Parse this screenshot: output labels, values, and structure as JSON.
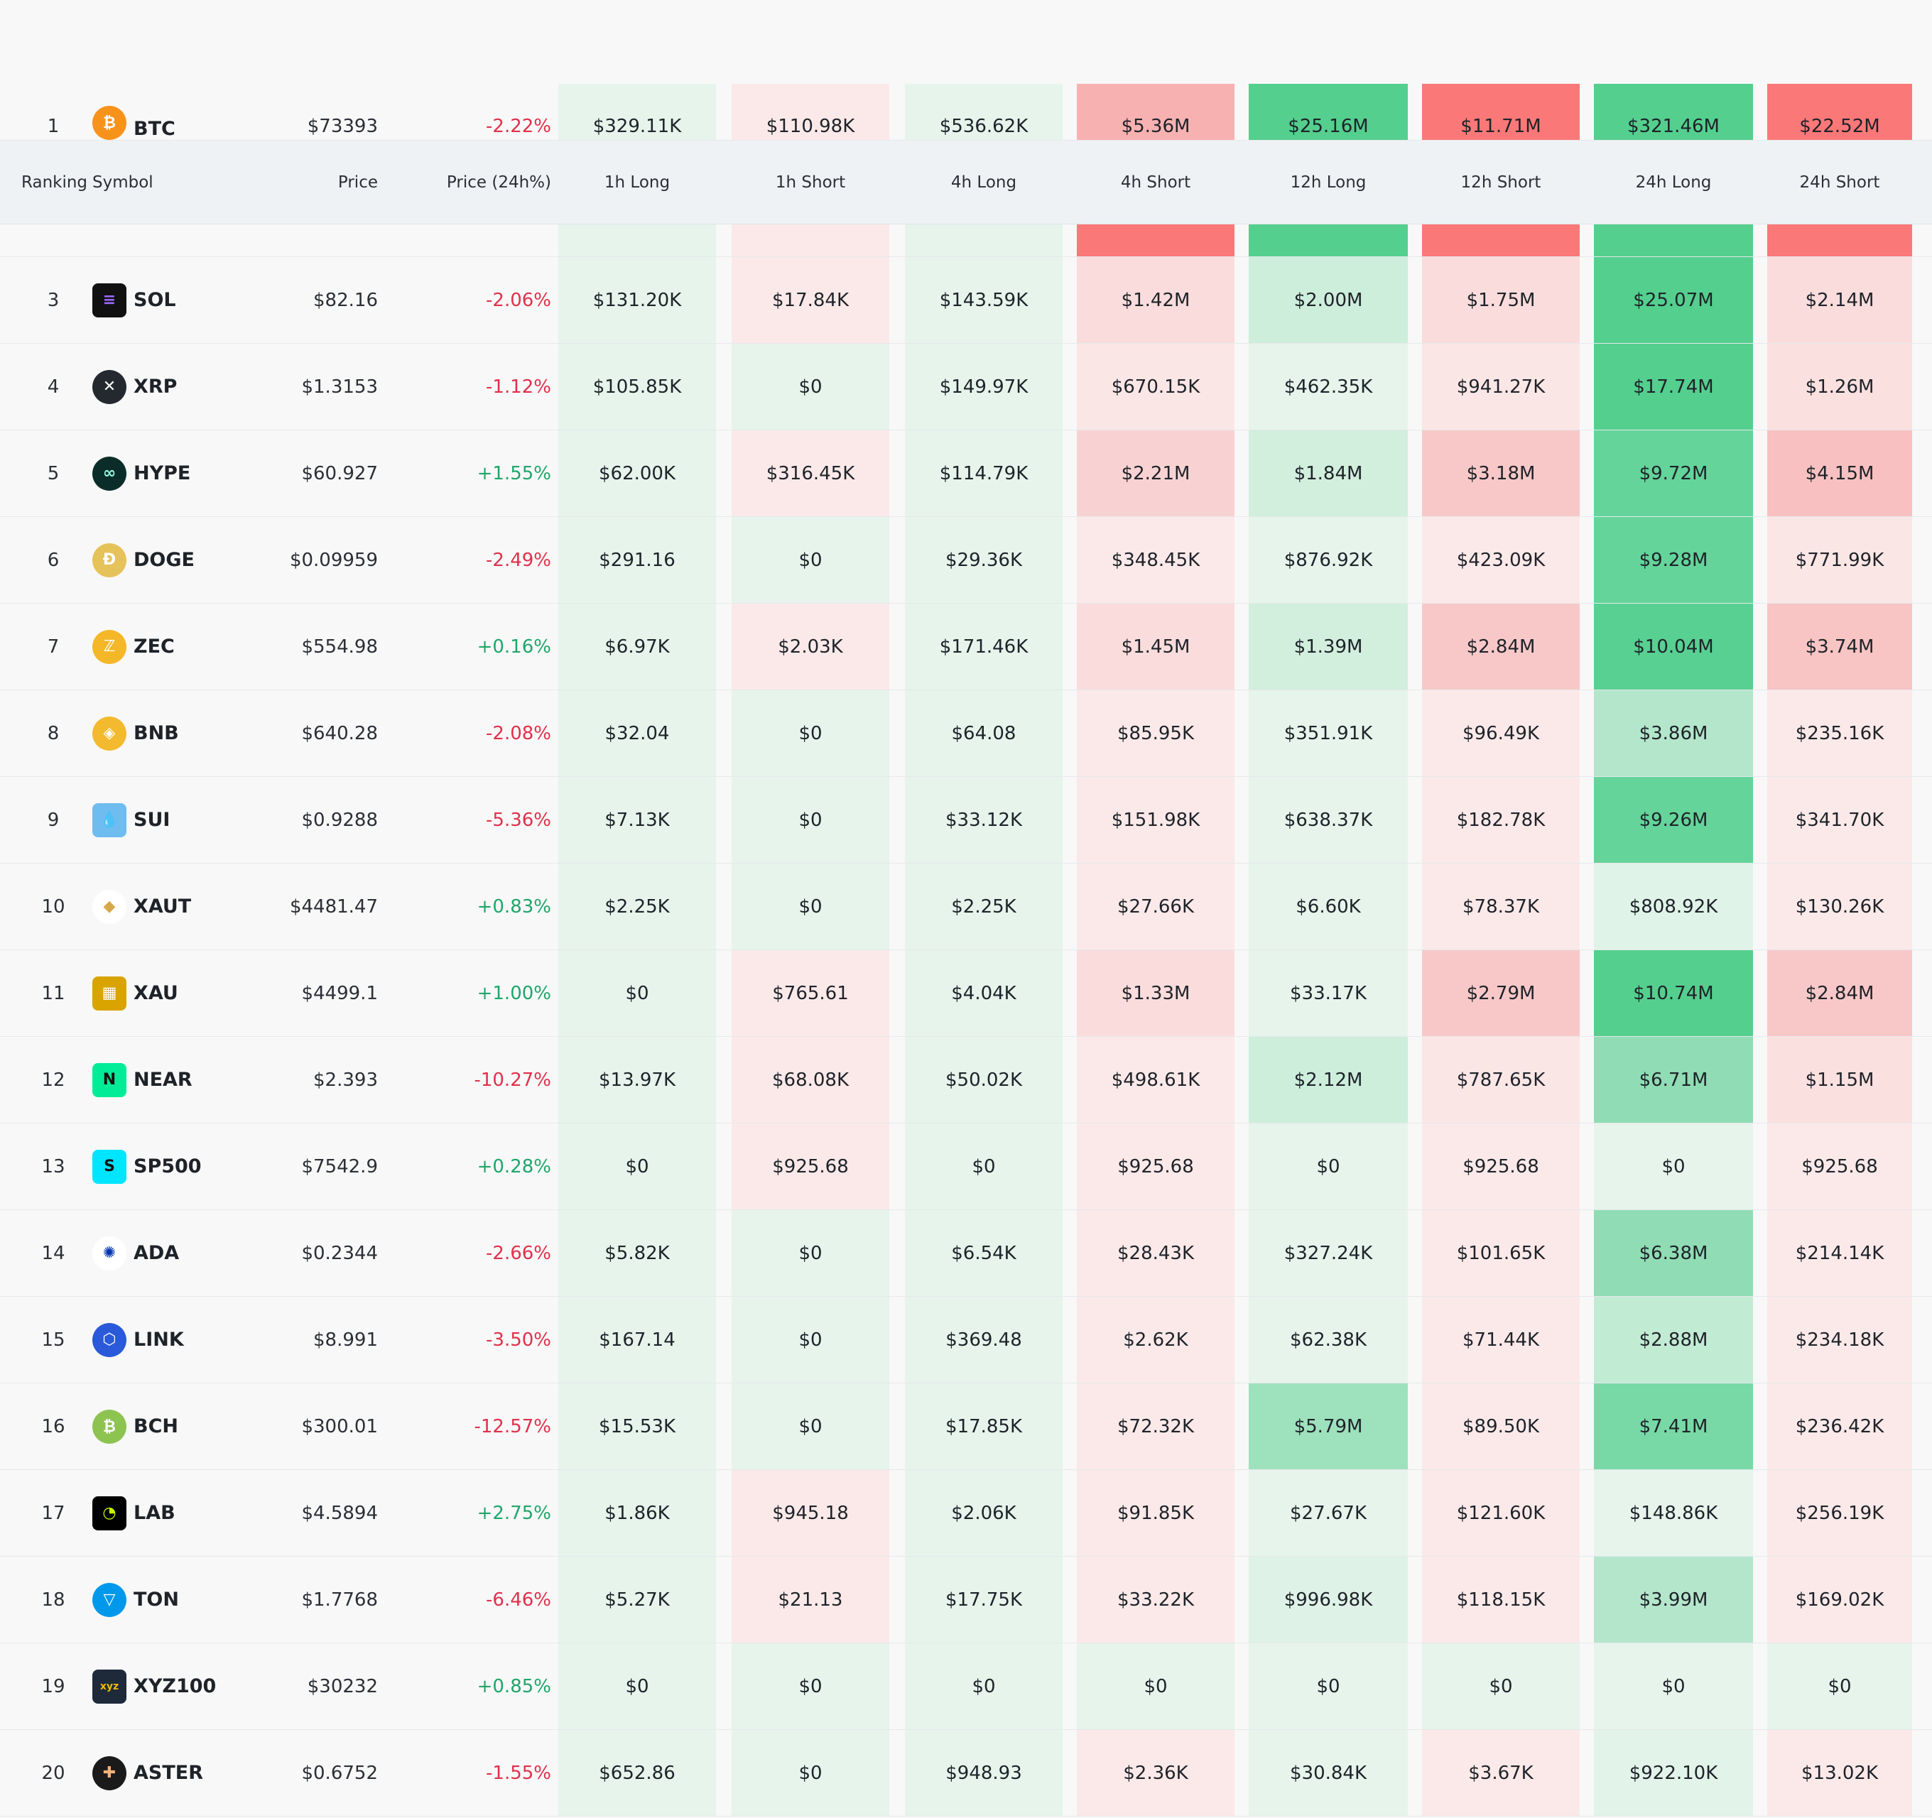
{
  "table": {
    "headers": {
      "ranking": "Ranking",
      "symbol": "Symbol",
      "price": "Price",
      "change": "Price (24h%)",
      "h1_long": "1h Long",
      "h1_short": "1h Short",
      "h4_long": "4h Long",
      "h4_short": "4h Short",
      "h12_long": "12h Long",
      "h12_short": "12h Short",
      "h24_long": "24h Long",
      "h24_short": "24h Short"
    },
    "rows": [
      {
        "rank": "1",
        "symbol": "BTC",
        "icon": "bitcoin-icon",
        "price": "$73393",
        "change": "-2.22%",
        "values": [
          "$329.11K",
          "$110.98K",
          "$536.62K",
          "$5.36M",
          "$25.16M",
          "$11.71M",
          "$321.46M",
          "$22.52M"
        ],
        "colors": [
          "#e6f4ec",
          "#fbe9e9",
          "#e6f4ec",
          "#f8b1b1",
          "#54cf8e",
          "#fb7878",
          "#54cf8e",
          "#fb7878"
        ]
      },
      {
        "rank": "3",
        "symbol": "SOL",
        "icon": "solana-icon",
        "price": "$82.16",
        "change": "-2.06%",
        "values": [
          "$131.20K",
          "$17.84K",
          "$143.59K",
          "$1.42M",
          "$2.00M",
          "$1.75M",
          "$25.07M",
          "$2.14M"
        ],
        "colors": [
          "#e6f4ec",
          "#fbe9e9",
          "#e6f4ec",
          "#fadcdc",
          "#cdeedb",
          "#fadcdc",
          "#54cf8e",
          "#fadcdc"
        ]
      },
      {
        "rank": "4",
        "symbol": "XRP",
        "icon": "xrp-icon",
        "price": "$1.3153",
        "change": "-1.12%",
        "values": [
          "$105.85K",
          "$0",
          "$149.97K",
          "$670.15K",
          "$462.35K",
          "$941.27K",
          "$17.74M",
          "$1.26M"
        ],
        "colors": [
          "#e6f4ec",
          "#e6f4ec",
          "#e6f4ec",
          "#fbe6e6",
          "#e6f4ec",
          "#fbe6e6",
          "#54cf8e",
          "#fbe0e0"
        ]
      },
      {
        "rank": "5",
        "symbol": "HYPE",
        "icon": "hyperliquid-icon",
        "price": "$60.927",
        "change": "+1.55%",
        "values": [
          "$62.00K",
          "$316.45K",
          "$114.79K",
          "$2.21M",
          "$1.84M",
          "$3.18M",
          "$9.72M",
          "$4.15M"
        ],
        "colors": [
          "#e6f4ec",
          "#fbe9e9",
          "#e6f4ec",
          "#f8d2d2",
          "#d2eedd",
          "#f8c8c8",
          "#64d49a",
          "#f8c0c0"
        ]
      },
      {
        "rank": "6",
        "symbol": "DOGE",
        "icon": "dogecoin-icon",
        "price": "$0.09959",
        "change": "-2.49%",
        "values": [
          "$291.16",
          "$0",
          "$29.36K",
          "$348.45K",
          "$876.92K",
          "$423.09K",
          "$9.28M",
          "$771.99K"
        ],
        "colors": [
          "#e6f4ec",
          "#e6f4ec",
          "#e6f4ec",
          "#fbe9e9",
          "#e6f4ec",
          "#fbe9e9",
          "#64d49a",
          "#fbe6e6"
        ]
      },
      {
        "rank": "7",
        "symbol": "ZEC",
        "icon": "zcash-icon",
        "price": "$554.98",
        "change": "+0.16%",
        "values": [
          "$6.97K",
          "$2.03K",
          "$171.46K",
          "$1.45M",
          "$1.39M",
          "$2.84M",
          "$10.04M",
          "$3.74M"
        ],
        "colors": [
          "#e6f4ec",
          "#fbe9e9",
          "#e6f4ec",
          "#fadcdc",
          "#d2eedd",
          "#f8c8c8",
          "#58d092",
          "#f8c4c4"
        ]
      },
      {
        "rank": "8",
        "symbol": "BNB",
        "icon": "bnb-icon",
        "price": "$640.28",
        "change": "-2.08%",
        "values": [
          "$32.04",
          "$0",
          "$64.08",
          "$85.95K",
          "$351.91K",
          "$96.49K",
          "$3.86M",
          "$235.16K"
        ],
        "colors": [
          "#e6f4ec",
          "#e6f4ec",
          "#e6f4ec",
          "#fbe9e9",
          "#e6f4ec",
          "#fbe9e9",
          "#b4e6cb",
          "#fbe9e9"
        ]
      },
      {
        "rank": "9",
        "symbol": "SUI",
        "icon": "sui-icon",
        "price": "$0.9288",
        "change": "-5.36%",
        "values": [
          "$7.13K",
          "$0",
          "$33.12K",
          "$151.98K",
          "$638.37K",
          "$182.78K",
          "$9.26M",
          "$341.70K"
        ],
        "colors": [
          "#e6f4ec",
          "#e6f4ec",
          "#e6f4ec",
          "#fbe9e9",
          "#e6f4ec",
          "#fbe9e9",
          "#64d49a",
          "#fbe9e9"
        ]
      },
      {
        "rank": "10",
        "symbol": "XAUT",
        "icon": "tether-gold-icon",
        "price": "$4481.47",
        "change": "+0.83%",
        "values": [
          "$2.25K",
          "$0",
          "$2.25K",
          "$27.66K",
          "$6.60K",
          "$78.37K",
          "$808.92K",
          "$130.26K"
        ],
        "colors": [
          "#e6f4ec",
          "#e6f4ec",
          "#e6f4ec",
          "#fbe9e9",
          "#e6f4ec",
          "#fbe9e9",
          "#e0f3e8",
          "#fbe9e9"
        ]
      },
      {
        "rank": "11",
        "symbol": "XAU",
        "icon": "gold-bars-icon",
        "price": "$4499.1",
        "change": "+1.00%",
        "values": [
          "$0",
          "$765.61",
          "$4.04K",
          "$1.33M",
          "$33.17K",
          "$2.79M",
          "$10.74M",
          "$2.84M"
        ],
        "colors": [
          "#e6f4ec",
          "#fbe9e9",
          "#e6f4ec",
          "#fadcdc",
          "#e6f4ec",
          "#f8c8c8",
          "#54cf8e",
          "#f8c8c8"
        ]
      },
      {
        "rank": "12",
        "symbol": "NEAR",
        "icon": "near-icon",
        "price": "$2.393",
        "change": "-10.27%",
        "values": [
          "$13.97K",
          "$68.08K",
          "$50.02K",
          "$498.61K",
          "$2.12M",
          "$787.65K",
          "$6.71M",
          "$1.15M"
        ],
        "colors": [
          "#e6f4ec",
          "#fbe9e9",
          "#e6f4ec",
          "#fbe9e9",
          "#cdeedb",
          "#fbe6e6",
          "#90dcb4",
          "#fbe0e0"
        ]
      },
      {
        "rank": "13",
        "symbol": "SP500",
        "icon": "sp500-icon",
        "price": "$7542.9",
        "change": "+0.28%",
        "values": [
          "$0",
          "$925.68",
          "$0",
          "$925.68",
          "$0",
          "$925.68",
          "$0",
          "$925.68"
        ],
        "colors": [
          "#e6f4ec",
          "#fbe9e9",
          "#e6f4ec",
          "#fbe9e9",
          "#e6f4ec",
          "#fbe9e9",
          "#e6f4ec",
          "#fbe9e9"
        ]
      },
      {
        "rank": "14",
        "symbol": "ADA",
        "icon": "cardano-icon",
        "price": "$0.2344",
        "change": "-2.66%",
        "values": [
          "$5.82K",
          "$0",
          "$6.54K",
          "$28.43K",
          "$327.24K",
          "$101.65K",
          "$6.38M",
          "$214.14K"
        ],
        "colors": [
          "#e6f4ec",
          "#e6f4ec",
          "#e6f4ec",
          "#fbe9e9",
          "#e6f4ec",
          "#fbe9e9",
          "#90dcb4",
          "#fbe9e9"
        ]
      },
      {
        "rank": "15",
        "symbol": "LINK",
        "icon": "chainlink-icon",
        "price": "$8.991",
        "change": "-3.50%",
        "values": [
          "$167.14",
          "$0",
          "$369.48",
          "$2.62K",
          "$62.38K",
          "$71.44K",
          "$2.88M",
          "$234.18K"
        ],
        "colors": [
          "#e6f4ec",
          "#e6f4ec",
          "#e6f4ec",
          "#fbe9e9",
          "#e6f4ec",
          "#fbe9e9",
          "#c2ebd4",
          "#fbe9e9"
        ]
      },
      {
        "rank": "16",
        "symbol": "BCH",
        "icon": "bitcoin-cash-icon",
        "price": "$300.01",
        "change": "-12.57%",
        "values": [
          "$15.53K",
          "$0",
          "$17.85K",
          "$72.32K",
          "$5.79M",
          "$89.50K",
          "$7.41M",
          "$236.42K"
        ],
        "colors": [
          "#e6f4ec",
          "#e6f4ec",
          "#e6f4ec",
          "#fbe9e9",
          "#9ee1bd",
          "#fbe9e9",
          "#78d9a6",
          "#fbe9e9"
        ]
      },
      {
        "rank": "17",
        "symbol": "LAB",
        "icon": "lab-icon",
        "price": "$4.5894",
        "change": "+2.75%",
        "values": [
          "$1.86K",
          "$945.18",
          "$2.06K",
          "$91.85K",
          "$27.67K",
          "$121.60K",
          "$148.86K",
          "$256.19K"
        ],
        "colors": [
          "#e6f4ec",
          "#fbe9e9",
          "#e6f4ec",
          "#fbe9e9",
          "#e6f4ec",
          "#fbe9e9",
          "#e6f4ec",
          "#fbe9e9"
        ]
      },
      {
        "rank": "18",
        "symbol": "TON",
        "icon": "toncoin-icon",
        "price": "$1.7768",
        "change": "-6.46%",
        "values": [
          "$5.27K",
          "$21.13",
          "$17.75K",
          "$33.22K",
          "$996.98K",
          "$118.15K",
          "$3.99M",
          "$169.02K"
        ],
        "colors": [
          "#e6f4ec",
          "#fbe9e9",
          "#e6f4ec",
          "#fbe9e9",
          "#dff2e7",
          "#fbe9e9",
          "#b4e6cb",
          "#fbe9e9"
        ]
      },
      {
        "rank": "19",
        "symbol": "XYZ100",
        "icon": "xyz-icon",
        "price": "$30232",
        "change": "+0.85%",
        "values": [
          "$0",
          "$0",
          "$0",
          "$0",
          "$0",
          "$0",
          "$0",
          "$0"
        ],
        "colors": [
          "#e6f4ec",
          "#e6f4ec",
          "#e6f4ec",
          "#e6f4ec",
          "#e6f4ec",
          "#e6f4ec",
          "#e6f4ec",
          "#e6f4ec"
        ]
      },
      {
        "rank": "20",
        "symbol": "ASTER",
        "icon": "aster-icon",
        "price": "$0.6752",
        "change": "-1.55%",
        "values": [
          "$652.86",
          "$0",
          "$948.93",
          "$2.36K",
          "$30.84K",
          "$3.67K",
          "$922.10K",
          "$13.02K"
        ],
        "colors": [
          "#e6f4ec",
          "#e6f4ec",
          "#e6f4ec",
          "#fbe9e9",
          "#e6f4ec",
          "#fbe9e9",
          "#e2f3e9",
          "#fbe9e9"
        ]
      }
    ],
    "row2_bar_colors": [
      "#e6f4ec",
      "#fbe9e9",
      "#e6f4ec",
      "#fb7878",
      "#54cf8e",
      "#fb7878",
      "#54cf8e",
      "#fb7878"
    ]
  }
}
